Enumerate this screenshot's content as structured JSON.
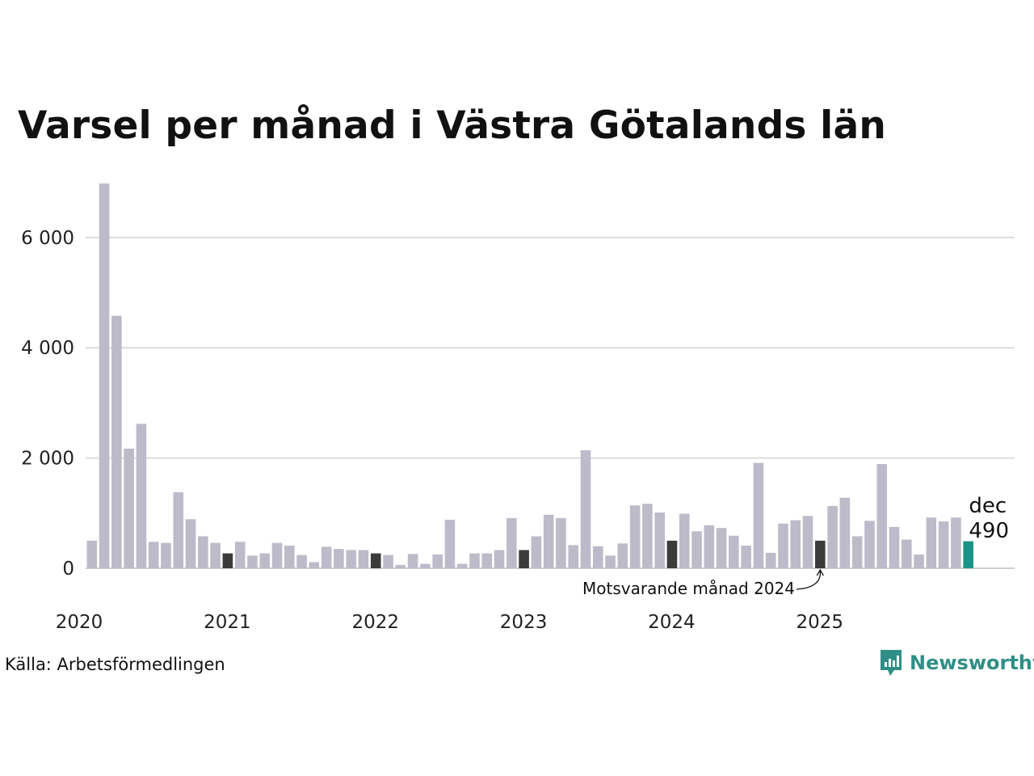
{
  "header": {
    "title": "Varsel per månad i Västra Götalands län"
  },
  "footer": {
    "source": "Källa: Arbetsförmedlingen",
    "brand": "Newsworthy"
  },
  "chart_data": {
    "type": "bar",
    "title": "Varsel per månad i Västra Götalands län",
    "xlabel": "",
    "ylabel": "",
    "ylim": [
      0,
      7000
    ],
    "yticks": [
      0,
      2000,
      4000,
      6000
    ],
    "ytick_labels": [
      "0",
      "2 000",
      "4 000",
      "6 000"
    ],
    "x_year_labels": [
      "2020",
      "2021",
      "2022",
      "2023",
      "2024",
      "2025"
    ],
    "grid": true,
    "legend": "none",
    "colors": {
      "default": "#bdbbc9",
      "december": "#3b3b3b",
      "latest": "#1a9488",
      "grid": "#dcdcdc",
      "axis": "#cfcfcf"
    },
    "categories": [
      "2020-01",
      "2020-02",
      "2020-03",
      "2020-04",
      "2020-05",
      "2020-06",
      "2020-07",
      "2020-08",
      "2020-09",
      "2020-10",
      "2020-11",
      "2020-12",
      "2021-01",
      "2021-02",
      "2021-03",
      "2021-04",
      "2021-05",
      "2021-06",
      "2021-07",
      "2021-08",
      "2021-09",
      "2021-10",
      "2021-11",
      "2021-12",
      "2022-01",
      "2022-02",
      "2022-03",
      "2022-04",
      "2022-05",
      "2022-06",
      "2022-07",
      "2022-08",
      "2022-09",
      "2022-10",
      "2022-11",
      "2022-12",
      "2023-01",
      "2023-02",
      "2023-03",
      "2023-04",
      "2023-05",
      "2023-06",
      "2023-07",
      "2023-08",
      "2023-09",
      "2023-10",
      "2023-11",
      "2023-12",
      "2024-01",
      "2024-02",
      "2024-03",
      "2024-04",
      "2024-05",
      "2024-06",
      "2024-07",
      "2024-08",
      "2024-09",
      "2024-10",
      "2024-11",
      "2024-12",
      "2025-01",
      "2025-02",
      "2025-03",
      "2025-04",
      "2025-05",
      "2025-06",
      "2025-07",
      "2025-08",
      "2025-09",
      "2025-10",
      "2025-11",
      "2025-12"
    ],
    "values": [
      500,
      6980,
      4580,
      2170,
      2620,
      480,
      460,
      1380,
      890,
      580,
      460,
      270,
      480,
      230,
      270,
      460,
      410,
      240,
      110,
      390,
      350,
      330,
      330,
      270,
      240,
      60,
      260,
      80,
      250,
      880,
      80,
      270,
      270,
      330,
      910,
      330,
      580,
      970,
      910,
      420,
      2140,
      400,
      230,
      450,
      1140,
      1170,
      1010,
      500,
      990,
      670,
      780,
      730,
      590,
      410,
      1910,
      280,
      810,
      870,
      950,
      500,
      1130,
      1280,
      580,
      860,
      1890,
      750,
      520,
      250,
      920,
      850,
      920,
      490
    ],
    "annotations": {
      "latest_month": "dec",
      "latest_value": "490",
      "comparison": "Motsvarande månad 2024"
    }
  }
}
